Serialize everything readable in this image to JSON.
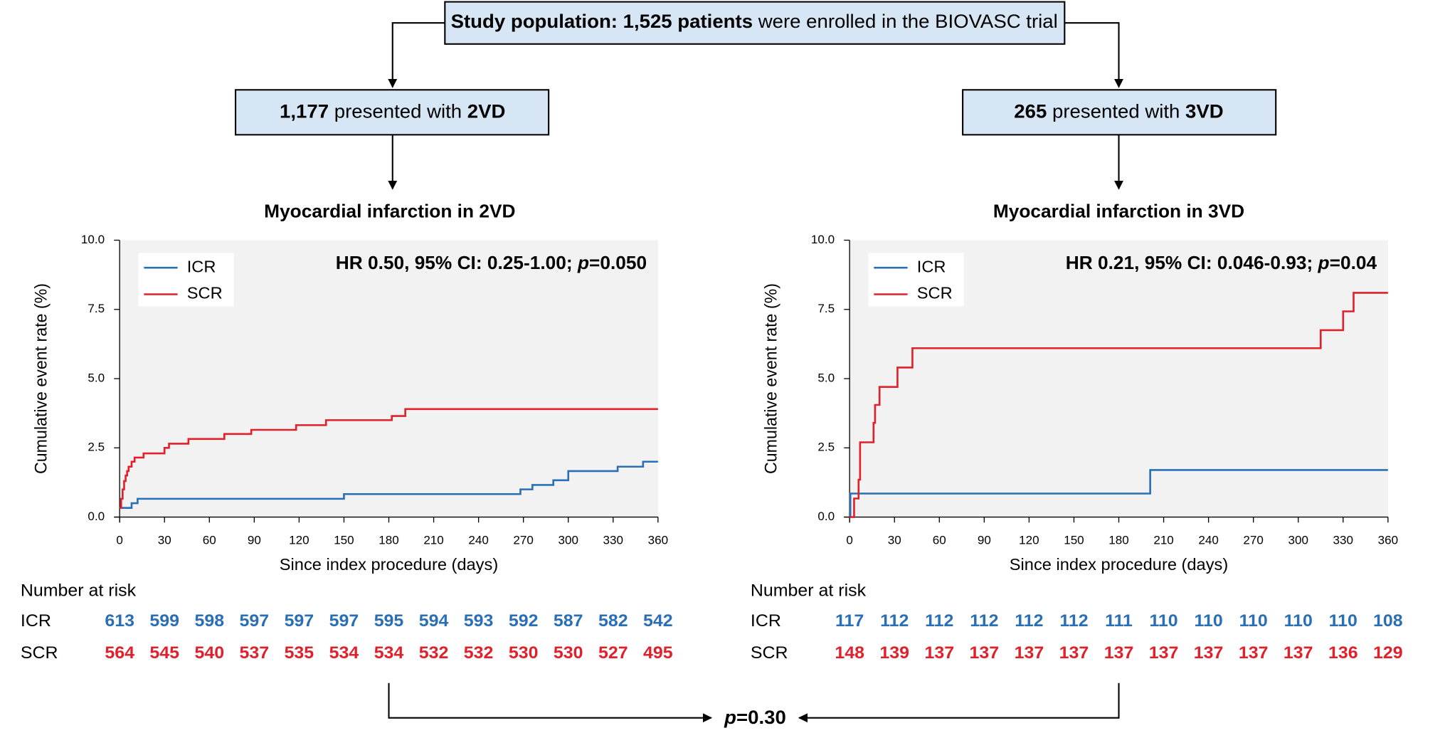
{
  "boxes": {
    "top": [
      {
        "text": "Study population: 1,525 patients",
        "bold": true
      },
      {
        "text": " were enrolled in the BIOVASC trial",
        "bold": false
      }
    ],
    "left": [
      {
        "text": "1,177",
        "bold": true
      },
      {
        "text": " presented with ",
        "bold": false
      },
      {
        "text": "2VD",
        "bold": true
      }
    ],
    "right": [
      {
        "text": "265",
        "bold": true
      },
      {
        "text": " presented with ",
        "bold": false
      },
      {
        "text": "3VD",
        "bold": true
      }
    ]
  },
  "comparison": {
    "p": "p",
    "value": "=0.30"
  },
  "chart_data": [
    {
      "type": "line",
      "step": true,
      "title": "Myocardial infarction in 2VD",
      "annotation": [
        {
          "text": "HR 0.50, 95% CI: 0.25-1.00; ",
          "italic": false
        },
        {
          "text": "p",
          "italic": true
        },
        {
          "text": "=0.050",
          "italic": false
        }
      ],
      "xlabel": "Since index procedure (days)",
      "ylabel": "Cumulative event rate (%)",
      "xlim": [
        0,
        360
      ],
      "ylim": [
        0,
        10
      ],
      "xticks": [
        0,
        30,
        60,
        90,
        120,
        150,
        180,
        210,
        240,
        270,
        300,
        330,
        360
      ],
      "yticks": [
        {
          "value": 0,
          "label": "0.0"
        },
        {
          "value": 2.5,
          "label": "2.5"
        },
        {
          "value": 5,
          "label": "5.0"
        },
        {
          "value": 7.5,
          "label": "7.5"
        },
        {
          "value": 10,
          "label": "10.0"
        }
      ],
      "series": [
        {
          "name": "ICR",
          "color": "#2a6fb5",
          "x": [
            0,
            8,
            12,
            150,
            268,
            276,
            290,
            300,
            333,
            350,
            360
          ],
          "values": [
            0.33,
            0.5,
            0.66,
            0.83,
            1.0,
            1.16,
            1.33,
            1.66,
            1.82,
            2.0,
            2.0
          ]
        },
        {
          "name": "SCR",
          "color": "#e0202a",
          "x": [
            0,
            1,
            2,
            3,
            4,
            5,
            6,
            8,
            10,
            16,
            30,
            33,
            46,
            70,
            88,
            118,
            138,
            182,
            191,
            360
          ],
          "values": [
            0.33,
            0.66,
            1.0,
            1.3,
            1.5,
            1.66,
            1.82,
            2.0,
            2.15,
            2.3,
            2.5,
            2.65,
            2.82,
            3.0,
            3.15,
            3.32,
            3.5,
            3.65,
            3.9,
            3.9
          ]
        }
      ],
      "risk": {
        "title": "Number at risk",
        "rows": [
          {
            "name": "ICR",
            "color": "#2a6fb5",
            "values": [
              613,
              599,
              598,
              597,
              597,
              597,
              595,
              594,
              593,
              592,
              587,
              582,
              542
            ]
          },
          {
            "name": "SCR",
            "color": "#e0202a",
            "values": [
              564,
              545,
              540,
              537,
              535,
              534,
              534,
              532,
              532,
              530,
              530,
              527,
              495
            ]
          }
        ]
      }
    },
    {
      "type": "line",
      "step": true,
      "title": "Myocardial infarction in 3VD",
      "annotation": [
        {
          "text": "HR 0.21, 95% CI: 0.046-0.93; ",
          "italic": false
        },
        {
          "text": "p",
          "italic": true
        },
        {
          "text": "=0.04",
          "italic": false
        }
      ],
      "xlabel": "Since index procedure (days)",
      "ylabel": "Cumulative event rate (%)",
      "xlim": [
        0,
        360
      ],
      "ylim": [
        0,
        10
      ],
      "xticks": [
        0,
        30,
        60,
        90,
        120,
        150,
        180,
        210,
        240,
        270,
        300,
        330,
        360
      ],
      "yticks": [
        {
          "value": 0,
          "label": "0.0"
        },
        {
          "value": 2.5,
          "label": "2.5"
        },
        {
          "value": 5,
          "label": "5.0"
        },
        {
          "value": 7.5,
          "label": "7.5"
        },
        {
          "value": 10,
          "label": "10.0"
        }
      ],
      "series": [
        {
          "name": "ICR",
          "color": "#2a6fb5",
          "x": [
            0,
            0.5,
            201,
            360
          ],
          "values": [
            0,
            0.85,
            1.7,
            1.7
          ]
        },
        {
          "name": "SCR",
          "color": "#e0202a",
          "x": [
            0,
            3,
            6,
            7,
            16,
            17,
            20,
            32,
            42,
            315,
            330,
            337,
            360
          ],
          "values": [
            0,
            0.67,
            1.35,
            2.7,
            3.4,
            4.05,
            4.7,
            5.4,
            6.1,
            6.75,
            7.43,
            8.1,
            8.1
          ]
        }
      ],
      "risk": {
        "title": "Number at risk",
        "rows": [
          {
            "name": "ICR",
            "color": "#2a6fb5",
            "values": [
              117,
              112,
              112,
              112,
              112,
              112,
              111,
              110,
              110,
              110,
              110,
              110,
              108
            ]
          },
          {
            "name": "SCR",
            "color": "#e0202a",
            "values": [
              148,
              139,
              137,
              137,
              137,
              137,
              137,
              137,
              137,
              137,
              137,
              136,
              129
            ]
          }
        ]
      }
    }
  ]
}
